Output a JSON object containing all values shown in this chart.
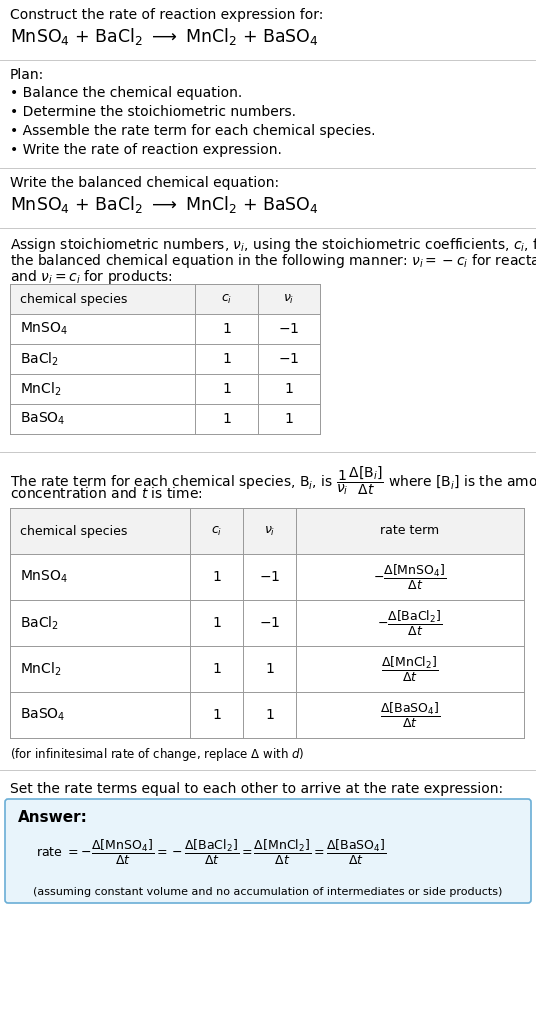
{
  "bg_color": "#ffffff",
  "text_color": "#000000",
  "title_line1": "Construct the rate of reaction expression for:",
  "title_eq": "MnSO$_4$ + BaCl$_2$ $\\longrightarrow$ MnCl$_2$ + BaSO$_4$",
  "plan_header": "Plan:",
  "plan_items": [
    "• Balance the chemical equation.",
    "• Determine the stoichiometric numbers.",
    "• Assemble the rate term for each chemical species.",
    "• Write the rate of reaction expression."
  ],
  "balanced_header": "Write the balanced chemical equation:",
  "balanced_eq": "MnSO$_4$ + BaCl$_2$ $\\longrightarrow$ MnCl$_2$ + BaSO$_4$",
  "stoich_text1": "Assign stoichiometric numbers, $\\nu_i$, using the stoichiometric coefficients, $c_i$, from",
  "stoich_text2": "the balanced chemical equation in the following manner: $\\nu_i = -c_i$ for reactants",
  "stoich_text3": "and $\\nu_i = c_i$ for products:",
  "table1_headers": [
    "chemical species",
    "$c_i$",
    "$\\nu_i$"
  ],
  "table1_rows": [
    [
      "MnSO$_4$",
      "1",
      "$-1$"
    ],
    [
      "BaCl$_2$",
      "1",
      "$-1$"
    ],
    [
      "MnCl$_2$",
      "1",
      "1"
    ],
    [
      "BaSO$_4$",
      "1",
      "1"
    ]
  ],
  "rate_text1": "The rate term for each chemical species, B$_i$, is $\\dfrac{1}{\\nu_i}\\dfrac{\\Delta[\\mathrm{B}_i]}{\\Delta t}$ where [B$_i$] is the amount",
  "rate_text2": "concentration and $t$ is time:",
  "table2_headers": [
    "chemical species",
    "$c_i$",
    "$\\nu_i$",
    "rate term"
  ],
  "table2_rows": [
    [
      "MnSO$_4$",
      "1",
      "$-1$",
      "$-\\dfrac{\\Delta[\\mathrm{MnSO_4}]}{\\Delta t}$"
    ],
    [
      "BaCl$_2$",
      "1",
      "$-1$",
      "$-\\dfrac{\\Delta[\\mathrm{BaCl_2}]}{\\Delta t}$"
    ],
    [
      "MnCl$_2$",
      "1",
      "1",
      "$\\dfrac{\\Delta[\\mathrm{MnCl_2}]}{\\Delta t}$"
    ],
    [
      "BaSO$_4$",
      "1",
      "1",
      "$\\dfrac{\\Delta[\\mathrm{BaSO_4}]}{\\Delta t}$"
    ]
  ],
  "infinitesimal_note": "(for infinitesimal rate of change, replace Δ with $d$)",
  "set_rate_text": "Set the rate terms equal to each other to arrive at the rate expression:",
  "answer_label": "Answer:",
  "answer_box_color": "#e8f4fb",
  "answer_box_border": "#6aaed6",
  "answer_eq": "$-\\dfrac{\\Delta[\\mathrm{MnSO_4}]}{\\Delta t} = -\\dfrac{\\Delta[\\mathrm{BaCl_2}]}{\\Delta t} = \\dfrac{\\Delta[\\mathrm{MnCl_2}]}{\\Delta t} = \\dfrac{\\Delta[\\mathrm{BaSO_4}]}{\\Delta t}$",
  "answer_note": "(assuming constant volume and no accumulation of intermediates or side products)",
  "separator_color": "#c8c8c8",
  "table_border_color": "#999999",
  "header_bg": "#f2f2f2"
}
